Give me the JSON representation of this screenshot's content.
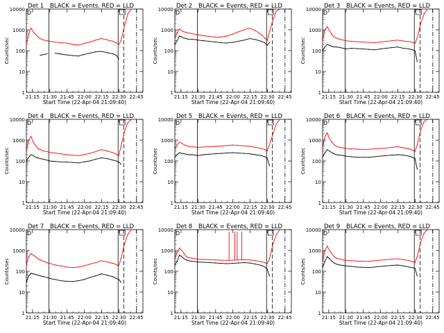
{
  "figure": {
    "background": "#ffffff",
    "colors": {
      "events": "#000000",
      "lld": "#ff0000",
      "axes": "#000000"
    }
  },
  "common": {
    "ylabel": "Counts/sec",
    "xlabel": "Start Time (22-Apr-04 21:09:40)",
    "xticks": [
      "21:15",
      "21:30",
      "21:45",
      "22:00",
      "22:15",
      "22:30",
      "22:45"
    ],
    "xtick_minutes": [
      5.33,
      20.33,
      35.33,
      50.33,
      65.33,
      80.33,
      95.33
    ],
    "xlim_minutes": [
      0,
      101
    ],
    "yticks": [
      "1",
      "10",
      "100",
      "1000",
      "10000"
    ],
    "ylim": [
      1,
      10000
    ],
    "yscale": "log",
    "legend_text": "BLACK = Events, RED = LLD",
    "corner_marker": "D",
    "vertical_lines_minutes": {
      "solid_left": 19.5,
      "solid_right": 79.5,
      "dashed": 84.5,
      "dashdot": 95.5
    }
  },
  "chart_data": [
    {
      "type": "line",
      "title": "Det 1",
      "xlabel": "Start Time (22-Apr-04 21:09:40)",
      "ylabel": "Counts/sec",
      "yscale": "log",
      "ylim": [
        1,
        10000
      ],
      "x": [
        0,
        2,
        4,
        6,
        8,
        10,
        12,
        15,
        18,
        20,
        25,
        30,
        35,
        40,
        45,
        50,
        55,
        60,
        65,
        70,
        75,
        78,
        80,
        82,
        85,
        88,
        91
      ],
      "series": [
        {
          "name": "BLACK = Events",
          "color": "#000000",
          "values": [
            null,
            null,
            null,
            null,
            null,
            null,
            60,
            65,
            70,
            null,
            75,
            68,
            62,
            58,
            55,
            65,
            75,
            88,
            92,
            80,
            70,
            60,
            40,
            null,
            null,
            null,
            null
          ]
        },
        {
          "name": "RED = LLD",
          "color": "#ff0000",
          "values": [
            200,
            600,
            1200,
            800,
            600,
            450,
            380,
            320,
            300,
            280,
            260,
            240,
            230,
            200,
            185,
            220,
            260,
            320,
            380,
            330,
            280,
            240,
            200,
            300,
            1500,
            6000,
            10000
          ]
        }
      ]
    },
    {
      "type": "line",
      "title": "Det 2",
      "xlabel": "Start Time (22-Apr-04 21:09:40)",
      "ylabel": "Counts/sec",
      "yscale": "log",
      "ylim": [
        1,
        10000
      ],
      "x": [
        0,
        2,
        4,
        6,
        8,
        10,
        12,
        15,
        18,
        20,
        25,
        30,
        35,
        40,
        45,
        50,
        55,
        60,
        65,
        70,
        75,
        78,
        80,
        82,
        85,
        88,
        91
      ],
      "series": [
        {
          "name": "BLACK = Events",
          "color": "#000000",
          "values": [
            200,
            300,
            500,
            450,
            400,
            380,
            350,
            350,
            340,
            320,
            300,
            280,
            260,
            240,
            230,
            250,
            280,
            320,
            380,
            340,
            280,
            240,
            180,
            250,
            null,
            null,
            null
          ]
        },
        {
          "name": "RED = LLD",
          "color": "#ff0000",
          "values": [
            400,
            700,
            1100,
            900,
            800,
            750,
            700,
            650,
            600,
            580,
            520,
            480,
            450,
            450,
            500,
            620,
            800,
            1000,
            1200,
            900,
            600,
            400,
            300,
            800,
            3000,
            8000,
            10000
          ]
        }
      ]
    },
    {
      "type": "line",
      "title": "Det 3",
      "xlabel": "Start Time (22-Apr-04 21:09:40)",
      "ylabel": "Counts/sec",
      "yscale": "log",
      "ylim": [
        1,
        10000
      ],
      "x": [
        0,
        2,
        4,
        6,
        8,
        10,
        12,
        15,
        18,
        20,
        25,
        30,
        35,
        40,
        45,
        50,
        55,
        60,
        65,
        70,
        75,
        78,
        80,
        82,
        85,
        88,
        91
      ],
      "series": [
        {
          "name": "BLACK = Events",
          "color": "#000000",
          "values": [
            100,
            150,
            200,
            180,
            160,
            150,
            150,
            140,
            130,
            120,
            130,
            125,
            120,
            115,
            110,
            120,
            130,
            140,
            150,
            130,
            120,
            110,
            100,
            30,
            null,
            null,
            null
          ]
        },
        {
          "name": "RED = LLD",
          "color": "#ff0000",
          "values": [
            300,
            1000,
            1400,
            900,
            600,
            450,
            400,
            350,
            320,
            300,
            280,
            270,
            260,
            250,
            240,
            260,
            280,
            300,
            320,
            290,
            270,
            250,
            220,
            400,
            2000,
            6000,
            10000
          ]
        }
      ]
    },
    {
      "type": "line",
      "title": "Det 4",
      "xlabel": "Start Time (22-Apr-04 21:09:40)",
      "ylabel": "Counts/sec",
      "yscale": "log",
      "ylim": [
        1,
        10000
      ],
      "x": [
        0,
        2,
        4,
        6,
        8,
        10,
        12,
        15,
        18,
        20,
        25,
        30,
        35,
        40,
        45,
        50,
        55,
        60,
        65,
        70,
        75,
        78,
        80,
        82,
        85,
        88,
        91
      ],
      "series": [
        {
          "name": "BLACK = Events",
          "color": "#000000",
          "values": [
            100,
            150,
            200,
            180,
            150,
            140,
            130,
            120,
            110,
            100,
            95,
            90,
            88,
            85,
            80,
            90,
            100,
            120,
            140,
            130,
            110,
            100,
            90,
            70,
            null,
            null,
            null
          ]
        },
        {
          "name": "RED = LLD",
          "color": "#ff0000",
          "values": [
            300,
            1000,
            1500,
            800,
            550,
            400,
            350,
            300,
            280,
            260,
            240,
            220,
            200,
            190,
            180,
            200,
            230,
            280,
            350,
            300,
            250,
            210,
            180,
            500,
            2500,
            7000,
            10000
          ]
        }
      ]
    },
    {
      "type": "line",
      "title": "Det 5",
      "xlabel": "Start Time (22-Apr-04 21:09:40)",
      "ylabel": "Counts/sec",
      "yscale": "log",
      "ylim": [
        1,
        10000
      ],
      "x": [
        0,
        2,
        4,
        6,
        8,
        10,
        12,
        15,
        18,
        20,
        25,
        30,
        35,
        40,
        45,
        50,
        55,
        60,
        65,
        70,
        75,
        78,
        80,
        82,
        85,
        88,
        91
      ],
      "series": [
        {
          "name": "BLACK = Events",
          "color": "#000000",
          "values": [
            150,
            200,
            250,
            230,
            220,
            210,
            200,
            200,
            190,
            180,
            200,
            210,
            220,
            230,
            240,
            250,
            240,
            230,
            220,
            200,
            180,
            160,
            140,
            60,
            null,
            null,
            null
          ]
        },
        {
          "name": "RED = LLD",
          "color": "#ff0000",
          "values": [
            350,
            600,
            800,
            700,
            600,
            550,
            500,
            480,
            460,
            450,
            470,
            480,
            500,
            520,
            550,
            580,
            560,
            530,
            500,
            450,
            400,
            350,
            300,
            600,
            2000,
            6000,
            10000
          ]
        }
      ]
    },
    {
      "type": "line",
      "title": "Det 6",
      "xlabel": "Start Time (22-Apr-04 21:09:40)",
      "ylabel": "Counts/sec",
      "yscale": "log",
      "ylim": [
        1,
        10000
      ],
      "x": [
        0,
        2,
        4,
        6,
        8,
        10,
        12,
        15,
        18,
        20,
        25,
        30,
        35,
        40,
        45,
        50,
        55,
        60,
        65,
        70,
        75,
        78,
        80,
        82,
        85,
        88,
        91
      ],
      "series": [
        {
          "name": "BLACK = Events",
          "color": "#000000",
          "values": [
            150,
            250,
            350,
            300,
            250,
            220,
            200,
            190,
            180,
            170,
            160,
            150,
            150,
            150,
            160,
            170,
            180,
            190,
            200,
            190,
            170,
            150,
            130,
            40,
            null,
            null,
            null
          ]
        },
        {
          "name": "RED = LLD",
          "color": "#ff0000",
          "values": [
            400,
            1500,
            2200,
            1200,
            800,
            600,
            500,
            450,
            420,
            400,
            380,
            370,
            360,
            360,
            380,
            400,
            420,
            450,
            480,
            430,
            380,
            330,
            280,
            600,
            3000,
            8000,
            10000
          ]
        }
      ]
    },
    {
      "type": "line",
      "title": "Det 7",
      "xlabel": "Start Time (22-Apr-04 21:09:40)",
      "ylabel": "Counts/sec",
      "yscale": "log",
      "ylim": [
        1,
        10000
      ],
      "x": [
        0,
        2,
        4,
        6,
        8,
        10,
        12,
        15,
        18,
        20,
        25,
        30,
        35,
        40,
        45,
        50,
        55,
        60,
        65,
        70,
        75,
        78,
        80,
        82,
        85,
        88,
        91
      ],
      "series": [
        {
          "name": "BLACK = Events",
          "color": "#000000",
          "values": [
            30,
            60,
            80,
            75,
            70,
            65,
            60,
            55,
            50,
            45,
            40,
            35,
            33,
            32,
            35,
            40,
            50,
            60,
            75,
            65,
            55,
            45,
            40,
            30,
            null,
            null,
            null
          ]
        },
        {
          "name": "RED = LLD",
          "color": "#ff0000",
          "values": [
            200,
            500,
            700,
            600,
            500,
            400,
            350,
            300,
            260,
            240,
            200,
            180,
            160,
            150,
            160,
            180,
            220,
            260,
            320,
            280,
            240,
            210,
            180,
            400,
            2000,
            6000,
            10000
          ]
        }
      ]
    },
    {
      "type": "line",
      "title": "Det 8",
      "xlabel": "Start Time (22-Apr-04 21:09:40)",
      "ylabel": "Counts/sec",
      "yscale": "log",
      "ylim": [
        1,
        10000
      ],
      "x": [
        0,
        2,
        4,
        6,
        8,
        10,
        12,
        15,
        18,
        20,
        25,
        30,
        35,
        40,
        45,
        50,
        55,
        60,
        65,
        70,
        75,
        78,
        80,
        82,
        85,
        88,
        91
      ],
      "series": [
        {
          "name": "BLACK = Events",
          "color": "#000000",
          "values": [
            200,
            300,
            600,
            500,
            400,
            350,
            320,
            300,
            290,
            280,
            270,
            260,
            250,
            240,
            230,
            240,
            250,
            260,
            250,
            220,
            190,
            160,
            130,
            60,
            null,
            null,
            null
          ]
        },
        {
          "name": "RED = LLD",
          "color": "#ff0000",
          "values": [
            400,
            800,
            1300,
            1000,
            700,
            500,
            450,
            420,
            400,
            380,
            370,
            360,
            350,
            340,
            330,
            340,
            350,
            360,
            350,
            320,
            290,
            260,
            230,
            400,
            2000,
            6000,
            10000
          ]
        }
      ],
      "annotations": [
        {
          "type": "spikes",
          "x": [
            47,
            52,
            54,
            58
          ],
          "value": 8000
        }
      ]
    },
    {
      "type": "line",
      "title": "Det 9",
      "xlabel": "Start Time (22-Apr-04 21:09:40)",
      "ylabel": "Counts/sec",
      "yscale": "log",
      "ylim": [
        1,
        10000
      ],
      "x": [
        0,
        2,
        4,
        6,
        8,
        10,
        12,
        15,
        18,
        20,
        25,
        30,
        35,
        40,
        45,
        50,
        55,
        60,
        65,
        70,
        75,
        78,
        80,
        82,
        85,
        88,
        91
      ],
      "series": [
        {
          "name": "BLACK = Events",
          "color": "#000000",
          "values": [
            150,
            300,
            500,
            400,
            300,
            250,
            220,
            200,
            190,
            180,
            170,
            160,
            155,
            150,
            160,
            170,
            180,
            190,
            200,
            180,
            160,
            150,
            140,
            60,
            null,
            null,
            null
          ]
        },
        {
          "name": "RED = LLD",
          "color": "#ff0000",
          "values": [
            300,
            1000,
            1600,
            1000,
            700,
            500,
            420,
            380,
            350,
            330,
            320,
            310,
            300,
            300,
            320,
            340,
            360,
            380,
            400,
            360,
            320,
            290,
            260,
            500,
            2500,
            7000,
            10000
          ]
        }
      ]
    }
  ]
}
